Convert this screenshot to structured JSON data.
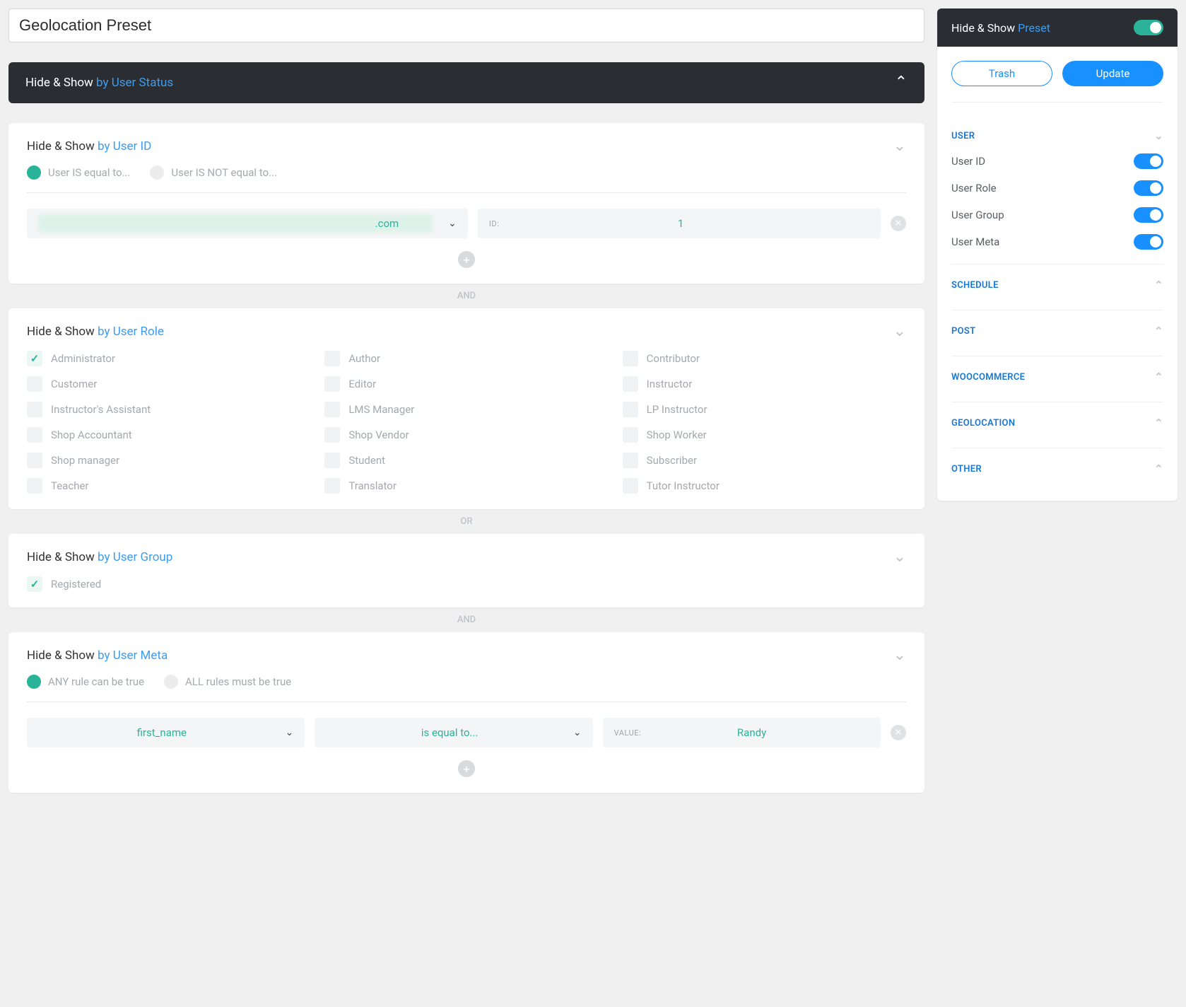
{
  "title": "Geolocation Preset",
  "colors": {
    "accent": "#1890ff",
    "teal": "#2bb39a",
    "darkbar": "#2a2e33",
    "muted": "#a5a9ad"
  },
  "mainHeader": {
    "label": "Hide & Show",
    "accent": "by User Status"
  },
  "userIdPanel": {
    "title": "Hide & Show",
    "accent": "by User ID",
    "radios": [
      {
        "label": "User IS equal to...",
        "active": true
      },
      {
        "label": "User IS NOT equal to...",
        "active": false
      }
    ],
    "userSuffix": ".com",
    "idLabel": "ID:",
    "idValue": "1"
  },
  "connector1": "AND",
  "userRolePanel": {
    "title": "Hide & Show",
    "accent": "by User Role",
    "roles": [
      {
        "label": "Administrator",
        "checked": true
      },
      {
        "label": "Author",
        "checked": false
      },
      {
        "label": "Contributor",
        "checked": false
      },
      {
        "label": "Customer",
        "checked": false
      },
      {
        "label": "Editor",
        "checked": false
      },
      {
        "label": "Instructor",
        "checked": false
      },
      {
        "label": "Instructor's Assistant",
        "checked": false
      },
      {
        "label": "LMS Manager",
        "checked": false
      },
      {
        "label": "LP Instructor",
        "checked": false
      },
      {
        "label": "Shop Accountant",
        "checked": false
      },
      {
        "label": "Shop Vendor",
        "checked": false
      },
      {
        "label": "Shop Worker",
        "checked": false
      },
      {
        "label": "Shop manager",
        "checked": false
      },
      {
        "label": "Student",
        "checked": false
      },
      {
        "label": "Subscriber",
        "checked": false
      },
      {
        "label": "Teacher",
        "checked": false
      },
      {
        "label": "Translator",
        "checked": false
      },
      {
        "label": "Tutor Instructor",
        "checked": false
      }
    ]
  },
  "connector2": "OR",
  "userGroupPanel": {
    "title": "Hide & Show",
    "accent": "by User Group",
    "groups": [
      {
        "label": "Registered",
        "checked": true
      }
    ]
  },
  "connector3": "AND",
  "userMetaPanel": {
    "title": "Hide & Show",
    "accent": "by User Meta",
    "radios": [
      {
        "label": "ANY rule can be true",
        "active": true
      },
      {
        "label": "ALL rules must be true",
        "active": false
      }
    ],
    "metaKey": "first_name",
    "operator": "is equal to...",
    "valueLabel": "VALUE:",
    "value": "Randy"
  },
  "sidebar": {
    "headTitle": "Hide & Show",
    "headAccent": "Preset",
    "trash": "Trash",
    "update": "Update",
    "sections": [
      {
        "label": "USER",
        "open": true,
        "items": [
          {
            "label": "User ID",
            "on": true
          },
          {
            "label": "User Role",
            "on": true
          },
          {
            "label": "User Group",
            "on": true
          },
          {
            "label": "User Meta",
            "on": true
          }
        ]
      },
      {
        "label": "SCHEDULE",
        "open": false
      },
      {
        "label": "POST",
        "open": false
      },
      {
        "label": "WOOCOMMERCE",
        "open": false
      },
      {
        "label": "GEOLOCATION",
        "open": false
      },
      {
        "label": "OTHER",
        "open": false
      }
    ]
  }
}
